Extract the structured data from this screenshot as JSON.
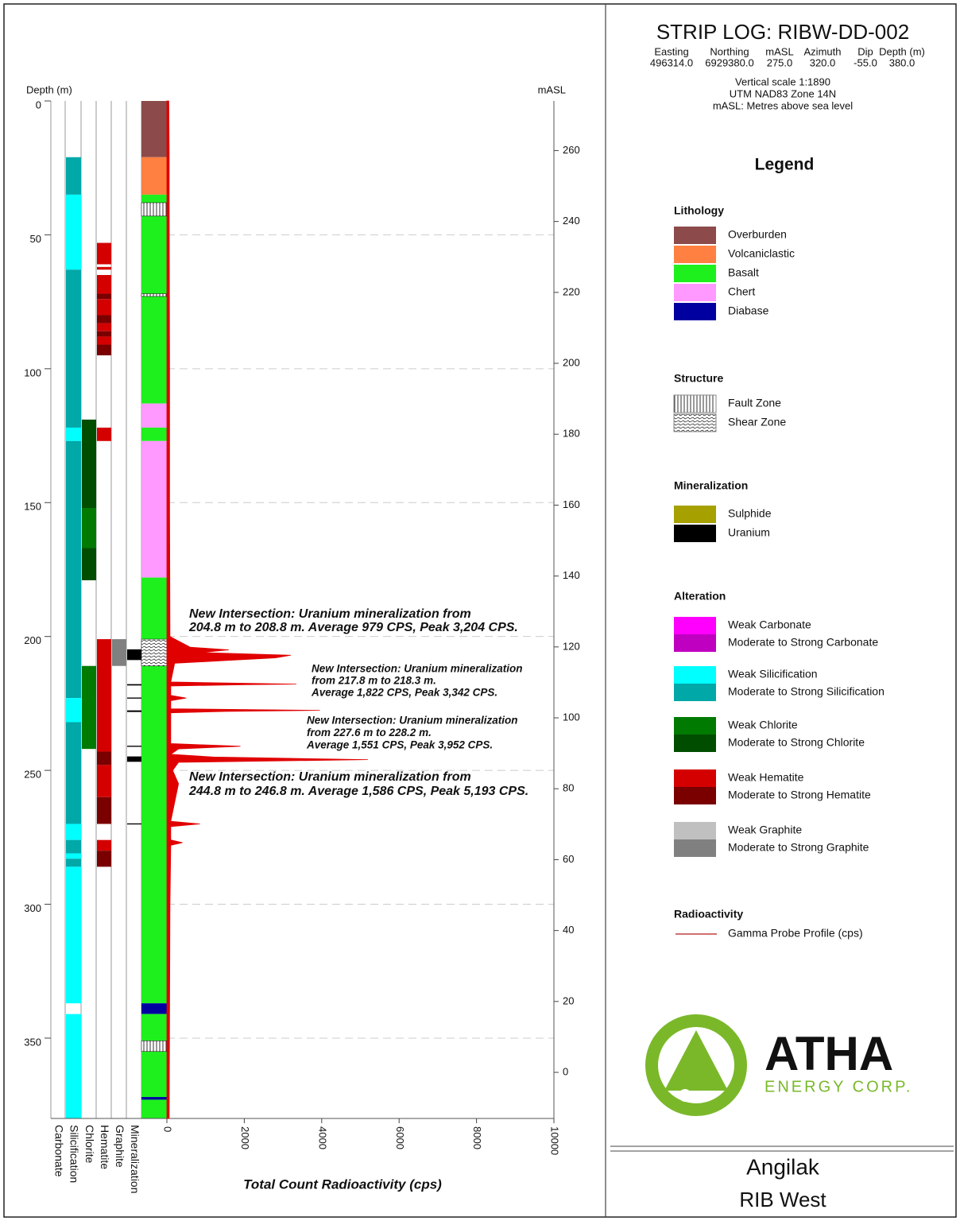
{
  "header": {
    "title": "STRIP LOG: RIBW-DD-002",
    "collar": {
      "columns": [
        "Easting",
        "Northing",
        "mASL",
        "Azimuth",
        "Dip",
        "Depth (m)"
      ],
      "values": [
        "496314.0",
        "6929380.0",
        "275.0",
        "320.0",
        "-55.0",
        "380.0"
      ]
    },
    "notes": [
      "Vertical scale 1:1890",
      "UTM NAD83 Zone 14N",
      "mASL: Metres above sea level"
    ]
  },
  "legend": {
    "title": "Legend",
    "groups": [
      {
        "title": "Lithology",
        "items": [
          {
            "label": "Overburden",
            "color": "#8c4a4a"
          },
          {
            "label": "Volcaniclastic",
            "color": "#ff8040"
          },
          {
            "label": "Basalt",
            "color": "#1ef01e"
          },
          {
            "label": "Chert",
            "color": "#ff99ff"
          },
          {
            "label": "Diabase",
            "color": "#0000a0"
          }
        ]
      },
      {
        "title": "Structure",
        "items": [
          {
            "label": "Fault Zone",
            "pattern": "fault"
          },
          {
            "label": "Shear Zone",
            "pattern": "shear"
          }
        ]
      },
      {
        "title": "Mineralization",
        "items": [
          {
            "label": "Sulphide",
            "color": "#a6a000"
          },
          {
            "label": "Uranium",
            "color": "#000000"
          }
        ]
      },
      {
        "title": "Alteration",
        "items": [
          {
            "label": "Weak Carbonate",
            "color": "#ff00ff"
          },
          {
            "label": "Moderate to Strong Carbonate",
            "color": "#c000c0"
          },
          {
            "label": "Weak Silicification",
            "color": "#00ffff"
          },
          {
            "label": "Moderate to Strong Silicification",
            "color": "#00a8a8"
          },
          {
            "label": "Weak Chlorite",
            "color": "#007a00"
          },
          {
            "label": "Moderate to Strong Chlorite",
            "color": "#004d00"
          },
          {
            "label": "Weak Hematite",
            "color": "#d40000"
          },
          {
            "label": "Moderate to Strong Hematite",
            "color": "#7a0000"
          },
          {
            "label": "Weak Graphite",
            "color": "#c0c0c0"
          },
          {
            "label": "Moderate to Strong Graphite",
            "color": "#808080"
          }
        ]
      },
      {
        "title": "Radioactivity",
        "items": [
          {
            "label": "Gamma Probe Profile (cps)",
            "color": "#c04040",
            "line": true
          }
        ]
      }
    ]
  },
  "chart_data": {
    "type": "strip-log",
    "depth_label": "Depth (m)",
    "masl_label": "mASL",
    "xlabel": "Total Count Radioactivity (cps)",
    "ylim": [
      0,
      380
    ],
    "yticks": [
      0,
      50,
      100,
      150,
      200,
      250,
      300,
      350
    ],
    "y2lim": [
      274,
      -13
    ],
    "y2ticks": [
      260,
      240,
      220,
      200,
      180,
      160,
      140,
      120,
      100,
      80,
      60,
      40,
      20,
      0
    ],
    "xlim": [
      0,
      10000
    ],
    "xticks": [
      0,
      2000,
      4000,
      6000,
      8000,
      10000
    ],
    "grid": true,
    "columns": [
      {
        "name": "Carbonate",
        "intervals": []
      },
      {
        "name": "Silicification",
        "intervals": [
          {
            "from": 21,
            "to": 35,
            "color": "#00a8a8"
          },
          {
            "from": 35,
            "to": 63,
            "color": "#00ffff"
          },
          {
            "from": 63,
            "to": 122,
            "color": "#00a8a8"
          },
          {
            "from": 122,
            "to": 127,
            "color": "#00ffff"
          },
          {
            "from": 127,
            "to": 223,
            "color": "#00a8a8"
          },
          {
            "from": 223,
            "to": 232,
            "color": "#00ffff"
          },
          {
            "from": 232,
            "to": 270,
            "color": "#00a8a8"
          },
          {
            "from": 270,
            "to": 276,
            "color": "#00ffff"
          },
          {
            "from": 276,
            "to": 281,
            "color": "#00a8a8"
          },
          {
            "from": 281,
            "to": 283,
            "color": "#00ffff"
          },
          {
            "from": 283,
            "to": 286,
            "color": "#00a8a8"
          },
          {
            "from": 286,
            "to": 337,
            "color": "#00ffff"
          },
          {
            "from": 341,
            "to": 380,
            "color": "#00ffff"
          }
        ]
      },
      {
        "name": "Chlorite",
        "intervals": [
          {
            "from": 119,
            "to": 152,
            "color": "#004d00"
          },
          {
            "from": 152,
            "to": 167,
            "color": "#007a00"
          },
          {
            "from": 167,
            "to": 179,
            "color": "#004d00"
          },
          {
            "from": 211,
            "to": 242,
            "color": "#007a00"
          }
        ]
      },
      {
        "name": "Hematite",
        "intervals": [
          {
            "from": 53,
            "to": 61,
            "color": "#d40000"
          },
          {
            "from": 62,
            "to": 63,
            "color": "#d40000"
          },
          {
            "from": 65,
            "to": 72,
            "color": "#d40000"
          },
          {
            "from": 72,
            "to": 74,
            "color": "#7a0000"
          },
          {
            "from": 74,
            "to": 80,
            "color": "#d40000"
          },
          {
            "from": 80,
            "to": 83,
            "color": "#7a0000"
          },
          {
            "from": 83,
            "to": 86,
            "color": "#d40000"
          },
          {
            "from": 86,
            "to": 88,
            "color": "#7a0000"
          },
          {
            "from": 88,
            "to": 91,
            "color": "#d40000"
          },
          {
            "from": 91,
            "to": 95,
            "color": "#7a0000"
          },
          {
            "from": 122,
            "to": 127,
            "color": "#d40000"
          },
          {
            "from": 201,
            "to": 243,
            "color": "#d40000"
          },
          {
            "from": 243,
            "to": 248,
            "color": "#7a0000"
          },
          {
            "from": 248,
            "to": 260,
            "color": "#d40000"
          },
          {
            "from": 260,
            "to": 270,
            "color": "#7a0000"
          },
          {
            "from": 276,
            "to": 280,
            "color": "#d40000"
          },
          {
            "from": 280,
            "to": 286,
            "color": "#7a0000"
          }
        ]
      },
      {
        "name": "Graphite",
        "intervals": [
          {
            "from": 201,
            "to": 211,
            "color": "#808080"
          }
        ]
      },
      {
        "name": "Mineralization",
        "intervals": [
          {
            "from": 204.8,
            "to": 208.8,
            "color": "#000000"
          },
          {
            "from": 217.8,
            "to": 218.3,
            "color": "#000000"
          },
          {
            "from": 222.8,
            "to": 223.2,
            "color": "#000000"
          },
          {
            "from": 227.6,
            "to": 228.2,
            "color": "#000000"
          },
          {
            "from": 240.8,
            "to": 241.2,
            "color": "#000000"
          },
          {
            "from": 244.8,
            "to": 246.8,
            "color": "#000000"
          },
          {
            "from": 269.8,
            "to": 270.2,
            "color": "#000000"
          }
        ]
      }
    ],
    "lithology": [
      {
        "from": 0,
        "to": 21,
        "color": "#8c4a4a"
      },
      {
        "from": 21,
        "to": 35,
        "color": "#ff8040"
      },
      {
        "from": 35,
        "to": 113,
        "color": "#1ef01e"
      },
      {
        "from": 113,
        "to": 122,
        "color": "#ff99ff"
      },
      {
        "from": 122,
        "to": 127,
        "color": "#1ef01e"
      },
      {
        "from": 127,
        "to": 178,
        "color": "#ff99ff"
      },
      {
        "from": 178,
        "to": 337,
        "color": "#1ef01e"
      },
      {
        "from": 337,
        "to": 341,
        "color": "#0000a0"
      },
      {
        "from": 341,
        "to": 372,
        "color": "#1ef01e"
      },
      {
        "from": 372,
        "to": 373,
        "color": "#0000a0"
      },
      {
        "from": 373,
        "to": 380,
        "color": "#1ef01e"
      }
    ],
    "structure": [
      {
        "from": 38,
        "to": 43,
        "pattern": "fault"
      },
      {
        "from": 72,
        "to": 73,
        "pattern": "fault"
      },
      {
        "from": 201,
        "to": 211,
        "pattern": "shear"
      },
      {
        "from": 351,
        "to": 355,
        "pattern": "fault"
      }
    ],
    "gamma": {
      "color": "#e00000",
      "depth": [
        0,
        20,
        35,
        100,
        150,
        200,
        204,
        205,
        206,
        207,
        208,
        209,
        210,
        217,
        217.8,
        218,
        218.5,
        222,
        223,
        224,
        227,
        227.6,
        228,
        228.5,
        240,
        241,
        242,
        244,
        245,
        246,
        247,
        250,
        255,
        269,
        270,
        271,
        276,
        277,
        278,
        300,
        380
      ],
      "cps": [
        50,
        60,
        60,
        70,
        70,
        80,
        600,
        1600,
        900,
        3204,
        2800,
        1500,
        200,
        100,
        3342,
        2000,
        100,
        100,
        500,
        100,
        100,
        3952,
        1500,
        100,
        100,
        1900,
        300,
        100,
        1200,
        5193,
        300,
        150,
        300,
        100,
        850,
        100,
        100,
        400,
        100,
        80,
        60
      ]
    },
    "annotations": [
      {
        "lines": [
          "New Intersection: Uranium mineralization from",
          "204.8 m to 208.8 m. Average 979 CPS, Peak 3,204 CPS."
        ]
      },
      {
        "lines": [
          "New Intersection: Uranium mineralization",
          "from 217.8 m to 218.3 m.",
          "Average 1,822 CPS, Peak 3,342 CPS."
        ]
      },
      {
        "lines": [
          "New Intersection: Uranium mineralization",
          "from 227.6 m to 228.2 m.",
          "Average 1,551 CPS, Peak 3,952 CPS."
        ]
      },
      {
        "lines": [
          "New Intersection: Uranium mineralization from",
          "244.8 m to 246.8 m. Average 1,586 CPS, Peak 5,193 CPS."
        ]
      }
    ]
  },
  "logo": {
    "name": "ATHA",
    "tagline": "ENERGY CORP."
  },
  "footer": {
    "project": "Angilak",
    "area": "RIB West"
  }
}
